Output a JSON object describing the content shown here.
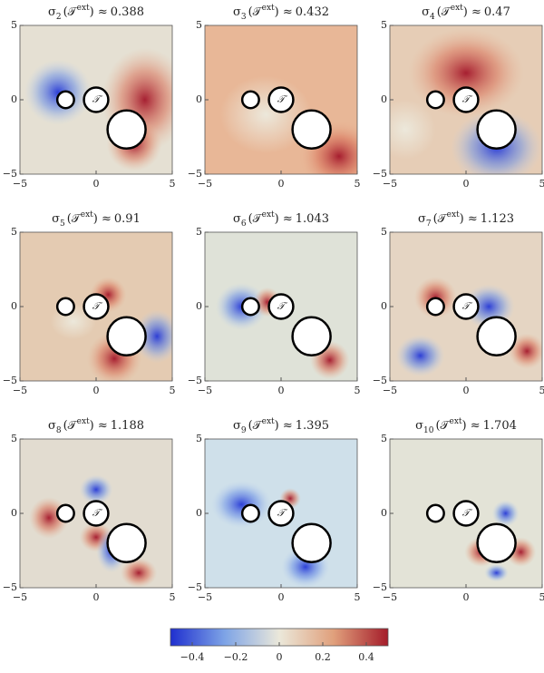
{
  "chart_data": [
    {
      "type": "heatmap",
      "title": {
        "symbol": "σ",
        "index": 2,
        "argument": "(𝒯",
        "superscript": "ext",
        "relation": ") ≈",
        "value": 0.388
      },
      "annotation": "𝒯",
      "xlim": [
        -5,
        5
      ],
      "ylim": [
        -5,
        5
      ],
      "xticks": [
        {
          "value": -5,
          "label": "−5"
        },
        0,
        5
      ],
      "yticks": [
        {
          "value": -5,
          "label": "−5"
        },
        0,
        5
      ]
    },
    {
      "type": "heatmap",
      "title": {
        "symbol": "σ",
        "index": 3,
        "argument": "(𝒯",
        "superscript": "ext",
        "relation": ") ≈",
        "value": 0.432
      },
      "annotation": "𝒯",
      "xlim": [
        -5,
        5
      ],
      "ylim": [
        -5,
        5
      ],
      "xticks": [
        {
          "value": -5,
          "label": "−5"
        },
        0,
        5
      ],
      "yticks": [
        {
          "value": -5,
          "label": "−5"
        },
        0,
        5
      ]
    },
    {
      "type": "heatmap",
      "title": {
        "symbol": "σ",
        "index": 4,
        "argument": "(𝒯",
        "superscript": "ext",
        "relation": ") ≈",
        "value": 0.47
      },
      "annotation": "𝒯",
      "xlim": [
        -5,
        5
      ],
      "ylim": [
        -5,
        5
      ],
      "xticks": [
        {
          "value": -5,
          "label": "−5"
        },
        0,
        5
      ],
      "yticks": [
        {
          "value": -5,
          "label": "−5"
        },
        0,
        5
      ]
    },
    {
      "type": "heatmap",
      "title": {
        "symbol": "σ",
        "index": 5,
        "argument": "(𝒯",
        "superscript": "ext",
        "relation": ") ≈",
        "value": 0.91
      },
      "annotation": "𝒯",
      "xlim": [
        -5,
        5
      ],
      "ylim": [
        -5,
        5
      ],
      "xticks": [
        {
          "value": -5,
          "label": "−5"
        },
        0,
        5
      ],
      "yticks": [
        {
          "value": -5,
          "label": "−5"
        },
        0,
        5
      ]
    },
    {
      "type": "heatmap",
      "title": {
        "symbol": "σ",
        "index": 6,
        "argument": "(𝒯",
        "superscript": "ext",
        "relation": ") ≈",
        "value": 1.043
      },
      "annotation": "𝒯",
      "xlim": [
        -5,
        5
      ],
      "ylim": [
        -5,
        5
      ],
      "xticks": [
        {
          "value": -5,
          "label": "−5"
        },
        0,
        5
      ],
      "yticks": [
        {
          "value": -5,
          "label": "−5"
        },
        0,
        5
      ]
    },
    {
      "type": "heatmap",
      "title": {
        "symbol": "σ",
        "index": 7,
        "argument": "(𝒯",
        "superscript": "ext",
        "relation": ") ≈",
        "value": 1.123
      },
      "annotation": "𝒯",
      "xlim": [
        -5,
        5
      ],
      "ylim": [
        -5,
        5
      ],
      "xticks": [
        {
          "value": -5,
          "label": "−5"
        },
        0,
        5
      ],
      "yticks": [
        {
          "value": -5,
          "label": "−5"
        },
        0,
        5
      ]
    },
    {
      "type": "heatmap",
      "title": {
        "symbol": "σ",
        "index": 8,
        "argument": "(𝒯",
        "superscript": "ext",
        "relation": ") ≈",
        "value": 1.188
      },
      "annotation": "𝒯",
      "xlim": [
        -5,
        5
      ],
      "ylim": [
        -5,
        5
      ],
      "xticks": [
        {
          "value": -5,
          "label": "−5"
        },
        0,
        5
      ],
      "yticks": [
        {
          "value": -5,
          "label": "−5"
        },
        0,
        5
      ]
    },
    {
      "type": "heatmap",
      "title": {
        "symbol": "σ",
        "index": 9,
        "argument": "(𝒯",
        "superscript": "ext",
        "relation": ") ≈",
        "value": 1.395
      },
      "annotation": "𝒯",
      "xlim": [
        -5,
        5
      ],
      "ylim": [
        -5,
        5
      ],
      "xticks": [
        {
          "value": -5,
          "label": "−5"
        },
        0,
        5
      ],
      "yticks": [
        {
          "value": -5,
          "label": "−5"
        },
        0,
        5
      ]
    },
    {
      "type": "heatmap",
      "title": {
        "symbol": "σ",
        "index": 10,
        "argument": "(𝒯",
        "superscript": "ext",
        "relation": ") ≈",
        "value": 1.704
      },
      "annotation": "𝒯",
      "xlim": [
        -5,
        5
      ],
      "ylim": [
        -5,
        5
      ],
      "xticks": [
        {
          "value": -5,
          "label": "−5"
        },
        0,
        5
      ],
      "yticks": [
        {
          "value": -5,
          "label": "−5"
        },
        0,
        5
      ]
    }
  ],
  "colorbar": {
    "lim": [
      -0.5,
      0.5
    ],
    "ticks": [
      {
        "value": -0.4,
        "label": "−0.4"
      },
      {
        "value": -0.2,
        "label": "−0.2"
      },
      0,
      0.2,
      0.4
    ]
  }
}
